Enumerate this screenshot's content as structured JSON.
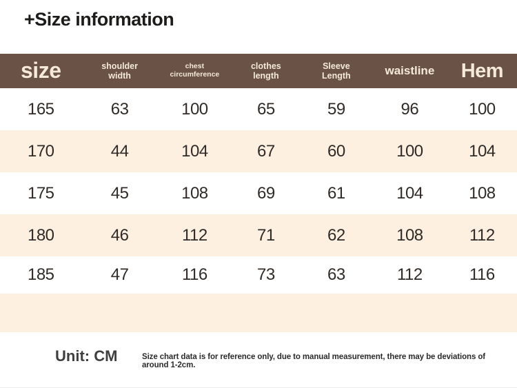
{
  "title": "+Size information",
  "chart_data": {
    "type": "table",
    "title": "+Size information",
    "columns": [
      "size",
      "shoulder\nwidth",
      "chest\ncircumference",
      "clothes\nlength",
      "Sleeve\nLength",
      "waistline",
      "Hem"
    ],
    "rows": [
      [
        "165",
        "63",
        "100",
        "65",
        "59",
        "96",
        "100"
      ],
      [
        "170",
        "44",
        "104",
        "67",
        "60",
        "100",
        "104"
      ],
      [
        "175",
        "45",
        "108",
        "69",
        "61",
        "104",
        "108"
      ],
      [
        "180",
        "46",
        "112",
        "71",
        "62",
        "108",
        "112"
      ],
      [
        "185",
        "47",
        "116",
        "73",
        "63",
        "112",
        "116"
      ]
    ],
    "unit": "CM",
    "layout": {
      "header_bg": "#6a5247",
      "header_text_color": "#f4e9db",
      "alt_row_bg": "#fdf0e0",
      "body_text_color": "#302b27",
      "zebra_striping": true,
      "trailing_empty_row": true
    }
  },
  "footer": {
    "unit_label": "Unit: CM",
    "disclaimer": "Size chart data is for reference only, due to manual measurement, there may be deviations of around 1-2cm."
  }
}
